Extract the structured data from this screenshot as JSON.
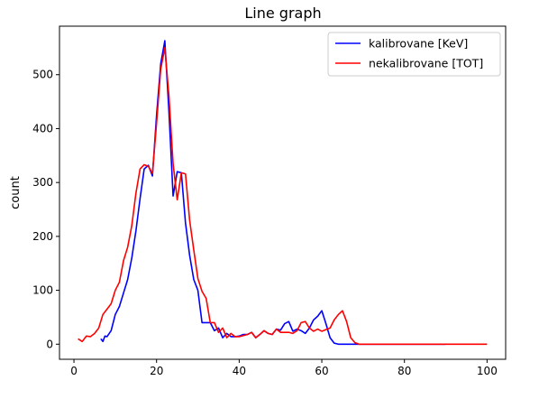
{
  "chart_data": {
    "type": "line",
    "title": "Line graph",
    "xlabel": "",
    "ylabel": "count",
    "xlim": [
      -3.5,
      104.5
    ],
    "ylim": [
      -28,
      590
    ],
    "xticks": [
      0,
      20,
      40,
      60,
      80,
      100
    ],
    "yticks": [
      0,
      100,
      200,
      300,
      400,
      500
    ],
    "grid": false,
    "legend": "top-right",
    "series": [
      {
        "name": "kalibrovane [KeV]",
        "color": "#0000ff",
        "x": [
          6.5,
          7,
          7.5,
          8,
          9,
          10,
          11,
          12,
          13,
          14,
          15,
          16,
          17,
          18,
          19,
          20,
          21,
          22,
          23,
          24,
          25,
          26,
          27,
          28,
          29,
          30,
          31,
          32,
          33,
          34,
          35,
          36,
          37,
          38,
          39,
          40,
          41,
          42,
          43,
          44,
          45,
          46,
          47,
          48,
          49,
          50,
          51,
          52,
          53,
          54,
          55,
          56,
          57,
          58,
          59,
          60,
          61,
          62,
          63,
          64,
          65,
          66,
          67,
          68,
          69,
          70,
          75,
          80,
          85,
          90
        ],
        "y": [
          10,
          5,
          15,
          14,
          25,
          55,
          70,
          95,
          120,
          160,
          210,
          270,
          325,
          332,
          312,
          425,
          520,
          563,
          430,
          275,
          320,
          318,
          225,
          165,
          120,
          100,
          40,
          40,
          40,
          25,
          30,
          12,
          20,
          14,
          14,
          15,
          18,
          18,
          22,
          12,
          18,
          25,
          20,
          18,
          28,
          26,
          38,
          42,
          24,
          28,
          25,
          20,
          30,
          45,
          52,
          62,
          38,
          12,
          2,
          0,
          0,
          0,
          0,
          0,
          0,
          0,
          0,
          0,
          0,
          0
        ]
      },
      {
        "name": "nekalibrovane [TOT]",
        "color": "#ff0000",
        "x": [
          1,
          2,
          3,
          4,
          5,
          6,
          7,
          8,
          9,
          10,
          11,
          12,
          13,
          14,
          15,
          16,
          17,
          18,
          19,
          20,
          21,
          22,
          23,
          24,
          25,
          26,
          27,
          28,
          29,
          30,
          31,
          32,
          33,
          34,
          35,
          36,
          37,
          38,
          39,
          40,
          41,
          42,
          43,
          44,
          45,
          46,
          47,
          48,
          49,
          50,
          51,
          52,
          53,
          54,
          55,
          56,
          57,
          58,
          59,
          60,
          61,
          62,
          63,
          64,
          65,
          66,
          67,
          68,
          69,
          70,
          75,
          80,
          85,
          90,
          95,
          100
        ],
        "y": [
          10,
          5,
          15,
          14,
          20,
          30,
          55,
          65,
          75,
          100,
          115,
          155,
          180,
          220,
          280,
          325,
          333,
          330,
          317,
          410,
          510,
          550,
          460,
          335,
          268,
          318,
          316,
          230,
          175,
          122,
          98,
          85,
          40,
          40,
          22,
          30,
          12,
          20,
          14,
          14,
          16,
          18,
          22,
          12,
          18,
          25,
          20,
          18,
          28,
          22,
          22,
          22,
          20,
          25,
          40,
          42,
          30,
          24,
          28,
          24,
          27,
          30,
          45,
          55,
          62,
          42,
          12,
          3,
          0,
          0,
          0,
          0,
          0,
          0,
          0,
          0
        ]
      }
    ]
  }
}
